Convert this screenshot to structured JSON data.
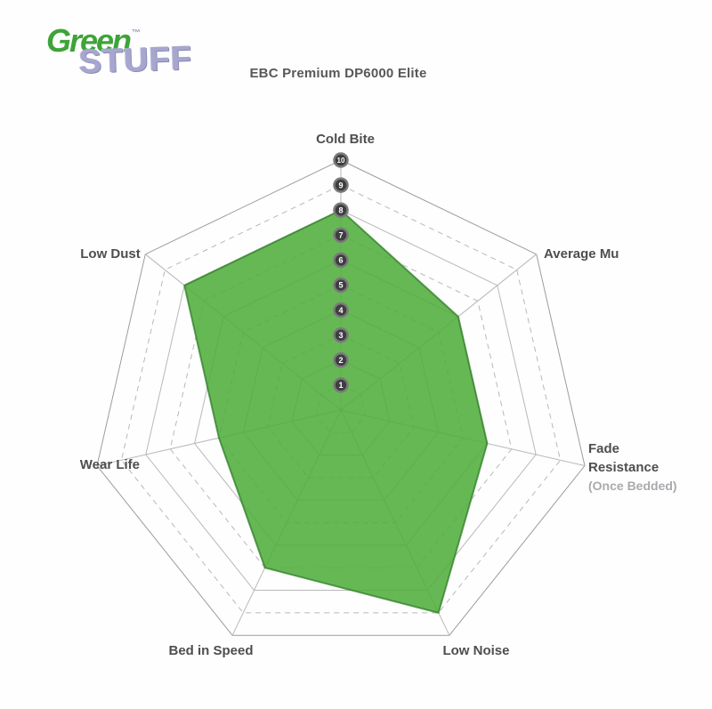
{
  "logo": {
    "green": "Green",
    "tm": "™",
    "stuff": "STUFF"
  },
  "title": "EBC Premium DP6000 Elite",
  "chart_data": {
    "type": "radar",
    "max": 10,
    "scale_ticks": [
      1,
      2,
      3,
      4,
      5,
      6,
      7,
      8,
      9,
      10
    ],
    "axes": [
      {
        "label": "Cold Bite",
        "value": 8
      },
      {
        "label": "Average Mu",
        "value": 6
      },
      {
        "label": "Fade Resistance",
        "sublabel": "(Once Bedded)",
        "value": 6
      },
      {
        "label": "Low Noise",
        "value": 9
      },
      {
        "label": "Bed in Speed",
        "value": 7
      },
      {
        "label": "Wear Life",
        "value": 5
      },
      {
        "label": "Low Dust",
        "value": 8
      }
    ],
    "legend_position": "none",
    "grid": true,
    "colors": {
      "fill": "#4FAE3C",
      "fill_stroke": "#2F7D26",
      "grid": "#b8b8b8",
      "outer_grid": "#9c9c9c",
      "badge_fill": "#3E3D40",
      "badge_ring": "#7a7a7a",
      "badge_text": "#ffffff",
      "label": "#4d4e50",
      "sublabel": "#a8aaad"
    }
  }
}
